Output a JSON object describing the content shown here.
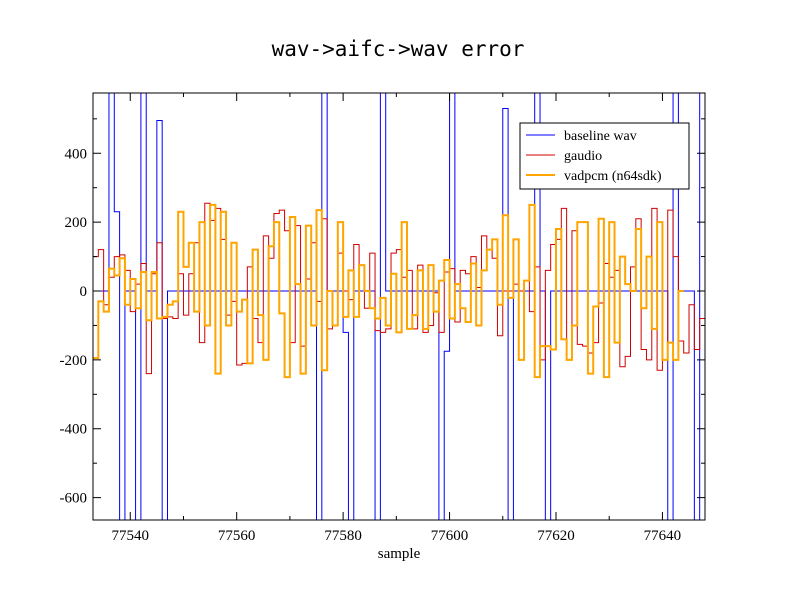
{
  "chart_data": {
    "type": "line",
    "title": "wav->aifc->wav error",
    "xlabel": "sample",
    "ylabel": "",
    "xlim": [
      77533,
      77648
    ],
    "ylim": [
      -665,
      575
    ],
    "xticks": [
      77540,
      77560,
      77580,
      77600,
      77620,
      77640
    ],
    "yticks": [
      -600,
      -400,
      -200,
      0,
      200,
      400
    ],
    "grid": false,
    "legend_position": "top-right",
    "step": true,
    "series": [
      {
        "name": "baseline wav",
        "color": "#0000ff",
        "stroke_width": 1,
        "x_start": 77533,
        "values": [
          0,
          0,
          0,
          1000,
          230,
          -1000,
          0,
          0,
          -1000,
          1000,
          0,
          0,
          495,
          -1000,
          0,
          0,
          0,
          0,
          0,
          0,
          0,
          0,
          0,
          0,
          0,
          0,
          0,
          0,
          0,
          0,
          0,
          0,
          0,
          0,
          0,
          0,
          0,
          0,
          0,
          0,
          0,
          0,
          -1000,
          1000,
          0,
          0,
          0,
          -120,
          -1000,
          0,
          0,
          0,
          0,
          -1000,
          1000,
          0,
          0,
          0,
          0,
          0,
          0,
          0,
          0,
          0,
          0,
          -1000,
          -175,
          1000,
          0,
          0,
          0,
          0,
          0,
          0,
          0,
          0,
          0,
          530,
          -1000,
          0,
          0,
          0,
          0,
          1000,
          0,
          -1000,
          0,
          0,
          0,
          0,
          0,
          0,
          0,
          0,
          0,
          0,
          0,
          0,
          0,
          0,
          0,
          0,
          0,
          0,
          0,
          0,
          0,
          0,
          -1000,
          1000,
          0,
          0,
          0,
          -1000,
          1000,
          0
        ]
      },
      {
        "name": "gaudio",
        "color": "#d00000",
        "stroke_width": 1,
        "x_start": 77533,
        "values": [
          100,
          120,
          -40,
          40,
          100,
          105,
          60,
          -60,
          20,
          80,
          -240,
          50,
          140,
          -80,
          -75,
          -80,
          50,
          -70,
          50,
          140,
          -150,
          255,
          205,
          240,
          150,
          -70,
          -30,
          -215,
          -210,
          70,
          -80,
          -150,
          160,
          95,
          225,
          235,
          175,
          -150,
          190,
          -160,
          35,
          140,
          -30,
          210,
          -110,
          -100,
          110,
          0,
          -25,
          135,
          75,
          -50,
          110,
          -115,
          -120,
          -110,
          110,
          120,
          40,
          60,
          -110,
          75,
          -120,
          -100,
          -5,
          -120,
          55,
          65,
          -90,
          60,
          50,
          100,
          10,
          160,
          120,
          95,
          -130,
          0,
          0,
          20,
          0,
          30,
          -60,
          70,
          -200,
          60,
          135,
          150,
          240,
          -200,
          175,
          -155,
          -160,
          -180,
          -150,
          -35,
          80,
          40,
          60,
          -220,
          -190,
          70,
          210,
          -170,
          -200,
          240,
          -230,
          -200,
          235,
          100,
          -145,
          -180,
          -40,
          -170,
          -80,
          -50,
          -100,
          0
        ]
      },
      {
        "name": "vadpcm (n64sdk)",
        "color": "#ffa500",
        "stroke_width": 2,
        "x_start": 77533,
        "values": [
          -195,
          -30,
          -60,
          65,
          45,
          95,
          -40,
          35,
          -50,
          55,
          -85,
          55,
          -80,
          -75,
          -40,
          -30,
          230,
          70,
          140,
          -60,
          200,
          -100,
          250,
          -240,
          230,
          -100,
          140,
          -60,
          -25,
          -210,
          120,
          -70,
          -200,
          130,
          200,
          -65,
          -250,
          215,
          20,
          -240,
          190,
          -100,
          235,
          -230,
          0,
          -100,
          200,
          -75,
          60,
          -75,
          75,
          0,
          -50,
          -80,
          -20,
          -100,
          50,
          -120,
          200,
          -110,
          -70,
          60,
          -110,
          75,
          -60,
          30,
          90,
          -80,
          20,
          -50,
          -90,
          80,
          -100,
          60,
          120,
          150,
          -40,
          220,
          -20,
          150,
          -200,
          30,
          250,
          -250,
          -160,
          -160,
          -170,
          180,
          -140,
          -200,
          -100,
          200,
          200,
          -240,
          -45,
          210,
          -250,
          200,
          -150,
          100,
          20,
          0,
          180,
          -50,
          100,
          -110,
          200,
          -200,
          -150,
          -200,
          0
        ]
      }
    ]
  }
}
